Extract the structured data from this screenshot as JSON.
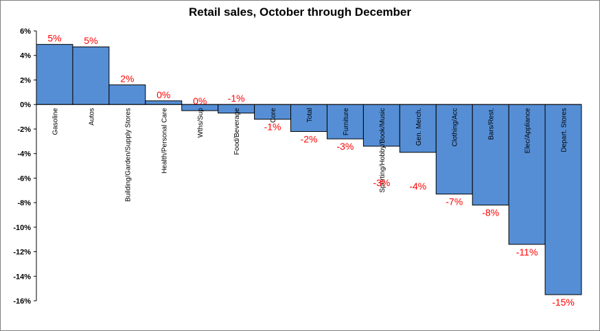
{
  "chart_data": {
    "type": "bar",
    "title": "Retail sales, October through December",
    "xlabel": "",
    "ylabel": "",
    "ylim": [
      -16,
      6
    ],
    "yticks": [
      6,
      4,
      2,
      0,
      -2,
      -4,
      -6,
      -8,
      -10,
      -12,
      -14,
      -16
    ],
    "ytick_labels": [
      "6%",
      "4%",
      "2%",
      "0%",
      "-2%",
      "-4%",
      "-6%",
      "-8%",
      "-10%",
      "-12%",
      "-14%",
      "-16%"
    ],
    "categories": [
      "Gasoline",
      "Autos",
      "Building/Garden/Supply Stores",
      "Health/Personal Care",
      "Wths/Sup",
      "Food/Beverage",
      "Core",
      "Total",
      "Furniture",
      "Sporting/Hobby/Book/Music",
      "Gen. Merch.",
      "Clothing/Acc",
      "Bars/Rest.",
      "Elec/Appliance",
      "Depart. Stores"
    ],
    "values": [
      4.9,
      4.7,
      1.6,
      0.3,
      -0.5,
      -0.7,
      -1.2,
      -2.2,
      -2.8,
      -3.4,
      -3.9,
      -7.3,
      -8.2,
      -11.4,
      -15.5
    ],
    "data_labels": [
      "5%",
      "5%",
      "2%",
      "0%",
      "0%",
      "-1%",
      "-1%",
      "-2%",
      "-3%",
      "-3%",
      "-4%",
      "-7%",
      "-8%",
      "-11%",
      "-15%"
    ],
    "bar_color": "#558ed5",
    "label_color": "#ff0000",
    "grid": false,
    "legend": "none"
  }
}
